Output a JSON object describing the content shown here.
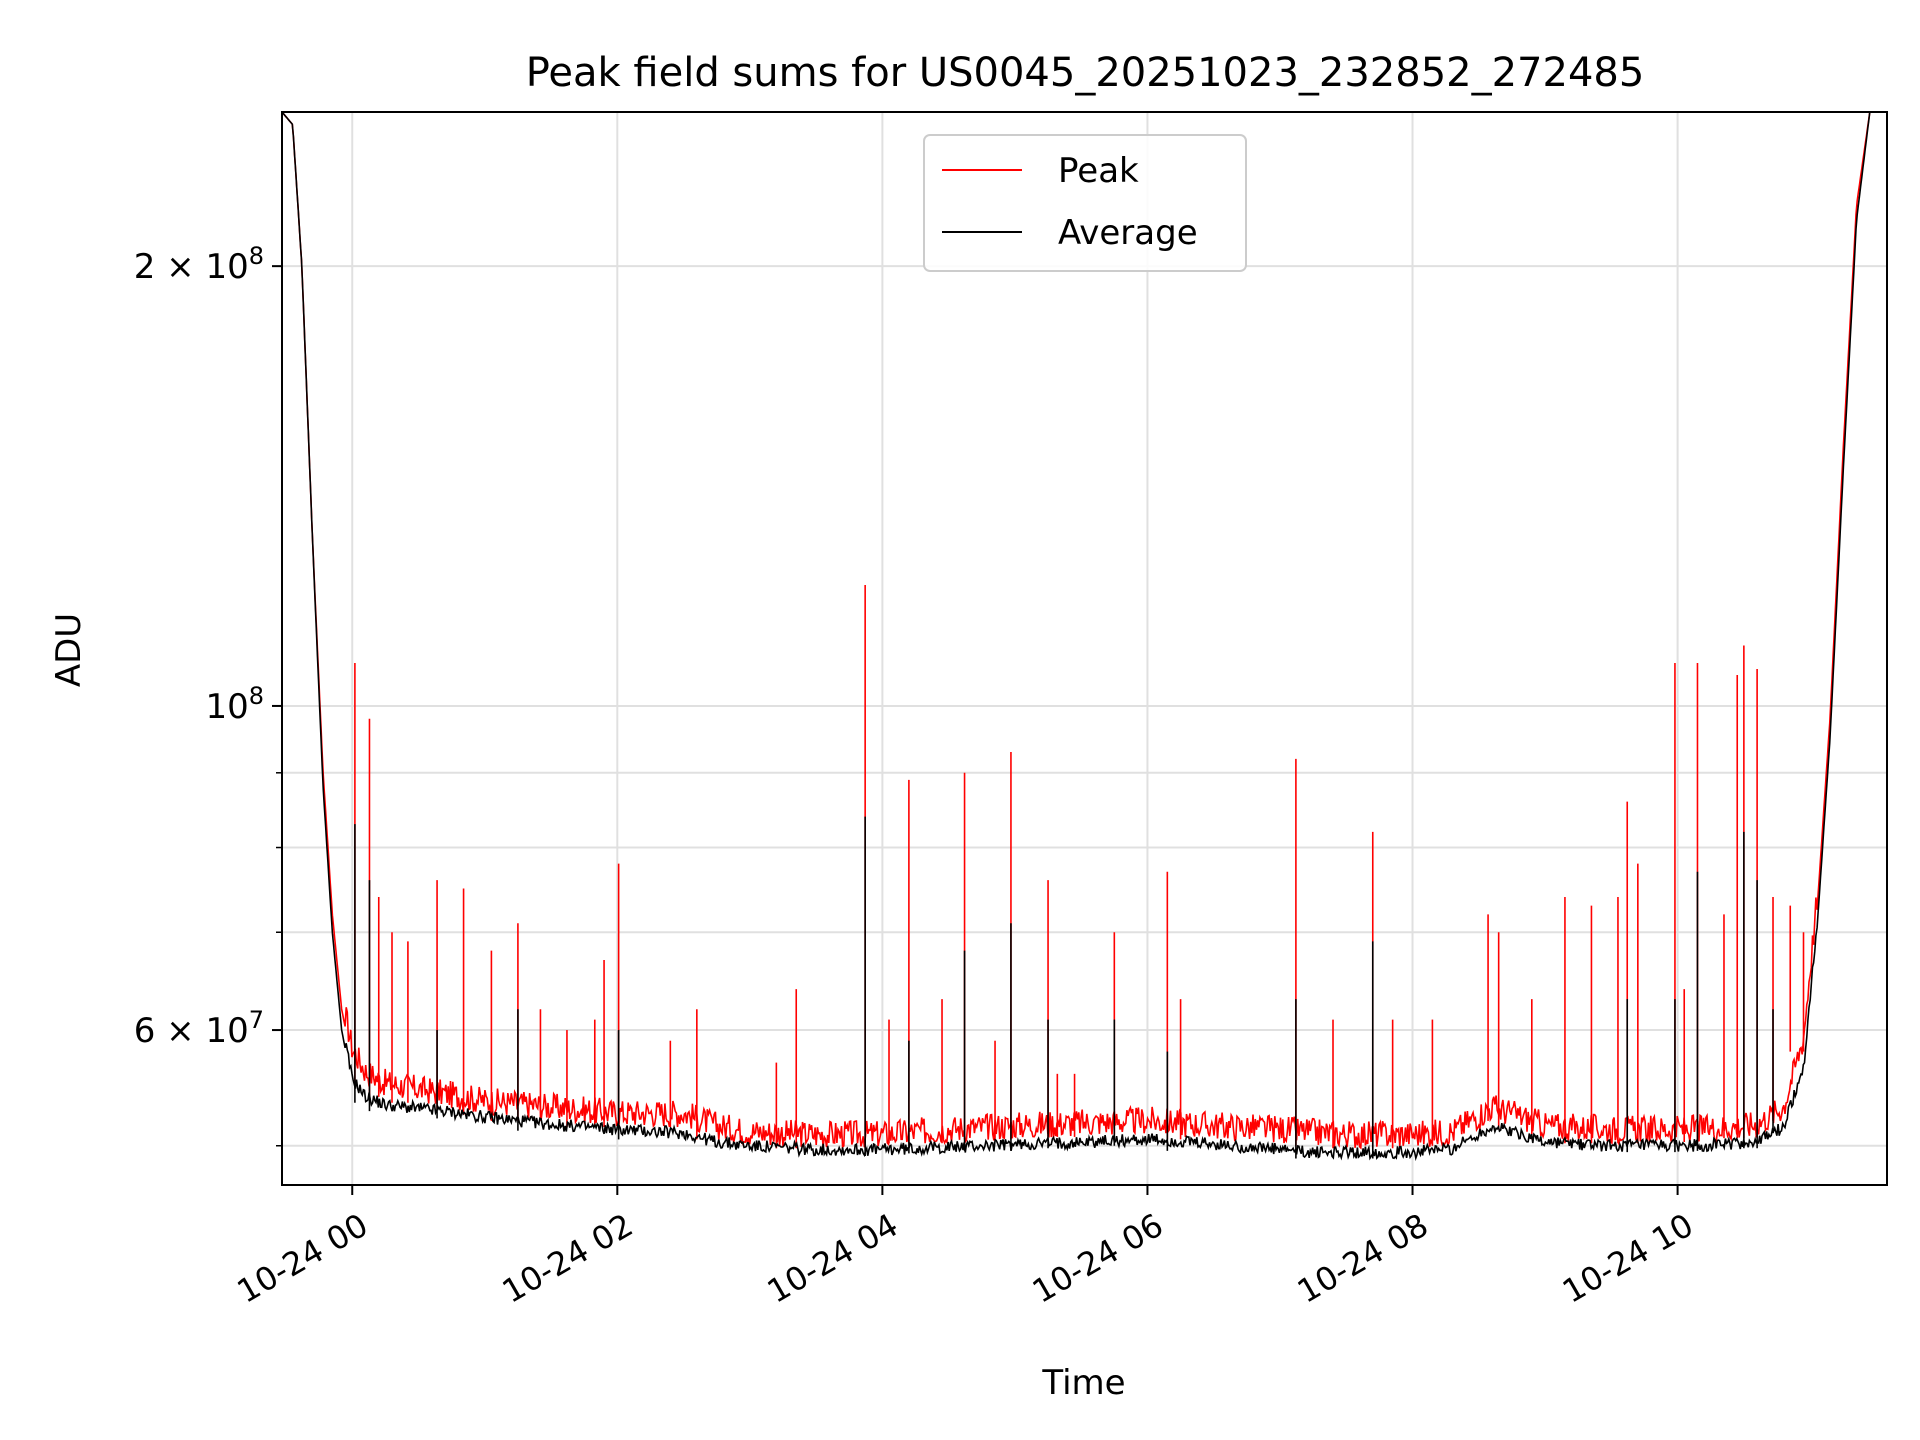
{
  "chart_data": {
    "type": "line",
    "title": "Peak field sums for US0045_20251023_232852_272485",
    "xlabel": "Time",
    "ylabel": "ADU",
    "y_scale": "log",
    "xlim_hours": [
      -0.53,
      11.58
    ],
    "ylim": [
      47000000,
      255000000
    ],
    "x_ticks": [
      {
        "value": 0,
        "label": "10-24 00"
      },
      {
        "value": 2,
        "label": "10-24 02"
      },
      {
        "value": 4,
        "label": "10-24 04"
      },
      {
        "value": 6,
        "label": "10-24 06"
      },
      {
        "value": 8,
        "label": "10-24 08"
      },
      {
        "value": 10,
        "label": "10-24 10"
      }
    ],
    "y_major_ticks": [
      {
        "value": 60000000,
        "mant": "6",
        "exp": "7"
      },
      {
        "value": 100000000,
        "mant": "",
        "exp": "8"
      },
      {
        "value": 200000000,
        "mant": "2",
        "exp": "8"
      }
    ],
    "y_minor_ticks": [
      50000000,
      70000000,
      80000000,
      90000000
    ],
    "grid": true,
    "legend_position": "top-center",
    "colors": {
      "peak": "#ff0000",
      "average": "#000000",
      "grid": "#e0e0e0"
    },
    "series": [
      {
        "name": "Peak",
        "x": [
          -0.53,
          -0.45,
          -0.38,
          -0.3,
          -0.22,
          -0.15,
          -0.08,
          0.0,
          0.1,
          0.25,
          0.5,
          0.75,
          1.0,
          1.5,
          2.0,
          2.5,
          2.75,
          3.0,
          3.5,
          4.0,
          4.5,
          5.0,
          5.5,
          6.0,
          6.5,
          7.0,
          7.2,
          7.5,
          8.0,
          8.3,
          8.6,
          8.8,
          9.0,
          9.5,
          10.0,
          10.3,
          10.6,
          10.8,
          10.95,
          11.05,
          11.15,
          11.25,
          11.35,
          11.45,
          11.58
        ],
        "y": [
          255000000,
          250000000,
          200000000,
          130000000,
          90000000,
          72000000,
          62000000,
          57000000,
          55000000,
          54000000,
          53500000,
          53000000,
          52500000,
          52000000,
          51500000,
          51500000,
          50500000,
          50000000,
          49800000,
          49800000,
          50200000,
          50500000,
          50700000,
          50900000,
          50500000,
          50200000,
          50000000,
          49800000,
          49800000,
          50000000,
          52000000,
          51300000,
          50500000,
          50200000,
          50200000,
          50300000,
          50600000,
          52000000,
          58000000,
          72000000,
          98000000,
          150000000,
          220000000,
          255000000,
          255000000
        ],
        "spikes": [
          {
            "x": 0.02,
            "y": 107000000
          },
          {
            "x": 0.13,
            "y": 98000000
          },
          {
            "x": 0.2,
            "y": 74000000
          },
          {
            "x": 0.3,
            "y": 70000000
          },
          {
            "x": 0.42,
            "y": 69000000
          },
          {
            "x": 0.64,
            "y": 76000000
          },
          {
            "x": 0.84,
            "y": 75000000
          },
          {
            "x": 1.05,
            "y": 68000000
          },
          {
            "x": 1.25,
            "y": 71000000
          },
          {
            "x": 1.42,
            "y": 62000000
          },
          {
            "x": 1.62,
            "y": 60000000
          },
          {
            "x": 1.83,
            "y": 61000000
          },
          {
            "x": 1.9,
            "y": 67000000
          },
          {
            "x": 2.01,
            "y": 78000000
          },
          {
            "x": 2.4,
            "y": 59000000
          },
          {
            "x": 2.6,
            "y": 62000000
          },
          {
            "x": 3.2,
            "y": 57000000
          },
          {
            "x": 3.35,
            "y": 64000000
          },
          {
            "x": 3.87,
            "y": 121000000
          },
          {
            "x": 4.05,
            "y": 61000000
          },
          {
            "x": 4.2,
            "y": 89000000
          },
          {
            "x": 4.45,
            "y": 63000000
          },
          {
            "x": 4.62,
            "y": 90000000
          },
          {
            "x": 4.85,
            "y": 59000000
          },
          {
            "x": 4.97,
            "y": 93000000
          },
          {
            "x": 5.25,
            "y": 76000000
          },
          {
            "x": 5.32,
            "y": 56000000
          },
          {
            "x": 5.45,
            "y": 56000000
          },
          {
            "x": 5.75,
            "y": 70000000
          },
          {
            "x": 6.15,
            "y": 77000000
          },
          {
            "x": 6.25,
            "y": 63000000
          },
          {
            "x": 7.12,
            "y": 92000000
          },
          {
            "x": 7.4,
            "y": 61000000
          },
          {
            "x": 7.7,
            "y": 82000000
          },
          {
            "x": 7.85,
            "y": 61000000
          },
          {
            "x": 8.15,
            "y": 61000000
          },
          {
            "x": 8.57,
            "y": 72000000
          },
          {
            "x": 8.65,
            "y": 70000000
          },
          {
            "x": 8.9,
            "y": 63000000
          },
          {
            "x": 9.15,
            "y": 74000000
          },
          {
            "x": 9.35,
            "y": 73000000
          },
          {
            "x": 9.55,
            "y": 74000000
          },
          {
            "x": 9.62,
            "y": 86000000
          },
          {
            "x": 9.7,
            "y": 78000000
          },
          {
            "x": 9.98,
            "y": 107000000
          },
          {
            "x": 10.05,
            "y": 64000000
          },
          {
            "x": 10.15,
            "y": 107000000
          },
          {
            "x": 10.35,
            "y": 72000000
          },
          {
            "x": 10.45,
            "y": 105000000
          },
          {
            "x": 10.5,
            "y": 110000000
          },
          {
            "x": 10.6,
            "y": 106000000
          },
          {
            "x": 10.72,
            "y": 74000000
          },
          {
            "x": 10.85,
            "y": 73000000
          },
          {
            "x": 10.95,
            "y": 70000000
          }
        ]
      },
      {
        "name": "Average",
        "x": [
          -0.53,
          -0.45,
          -0.38,
          -0.3,
          -0.22,
          -0.15,
          -0.08,
          0.0,
          0.1,
          0.25,
          0.5,
          0.75,
          1.0,
          1.5,
          2.0,
          2.5,
          2.75,
          3.0,
          3.5,
          4.0,
          4.5,
          5.0,
          5.5,
          6.0,
          6.5,
          7.0,
          7.2,
          7.5,
          8.0,
          8.3,
          8.6,
          8.8,
          9.0,
          9.5,
          10.0,
          10.3,
          10.6,
          10.8,
          10.95,
          11.05,
          11.15,
          11.25,
          11.35,
          11.45,
          11.58
        ],
        "y": [
          255000000,
          250000000,
          200000000,
          130000000,
          88000000,
          70000000,
          60000000,
          55000000,
          53500000,
          52800000,
          52500000,
          52200000,
          51800000,
          51200000,
          50800000,
          50500000,
          49800000,
          49500000,
          49200000,
          49200000,
          49400000,
          49600000,
          49800000,
          50000000,
          49600000,
          49200000,
          49000000,
          49000000,
          49000000,
          49300000,
          51000000,
          50500000,
          49800000,
          49500000,
          49500000,
          49600000,
          49800000,
          51000000,
          56000000,
          70000000,
          95000000,
          145000000,
          215000000,
          255000000,
          255000000
        ],
        "spikes": [
          {
            "x": 0.02,
            "y": 83000000
          },
          {
            "x": 0.13,
            "y": 76000000
          },
          {
            "x": 0.64,
            "y": 60000000
          },
          {
            "x": 1.25,
            "y": 62000000
          },
          {
            "x": 2.01,
            "y": 60000000
          },
          {
            "x": 3.87,
            "y": 84000000
          },
          {
            "x": 4.2,
            "y": 59000000
          },
          {
            "x": 4.62,
            "y": 68000000
          },
          {
            "x": 4.97,
            "y": 71000000
          },
          {
            "x": 5.25,
            "y": 61000000
          },
          {
            "x": 5.75,
            "y": 61000000
          },
          {
            "x": 6.15,
            "y": 58000000
          },
          {
            "x": 7.12,
            "y": 63000000
          },
          {
            "x": 7.7,
            "y": 69000000
          },
          {
            "x": 9.62,
            "y": 63000000
          },
          {
            "x": 9.98,
            "y": 63000000
          },
          {
            "x": 10.15,
            "y": 77000000
          },
          {
            "x": 10.5,
            "y": 82000000
          },
          {
            "x": 10.6,
            "y": 76000000
          },
          {
            "x": 10.72,
            "y": 62000000
          }
        ]
      }
    ],
    "legend": [
      {
        "name": "Peak",
        "color": "#ff0000"
      },
      {
        "name": "Average",
        "color": "#000000"
      }
    ]
  }
}
